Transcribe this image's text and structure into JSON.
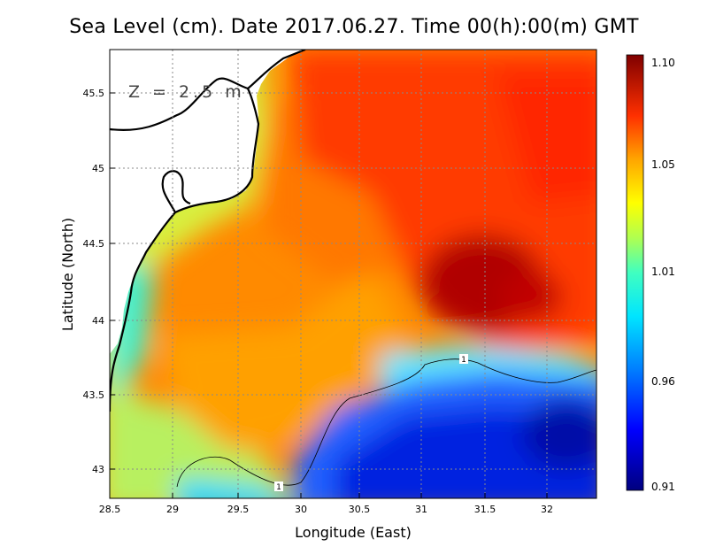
{
  "title": "Sea Level (cm). Date 2017.06.27. Time 00(h):00(m) GMT",
  "depth_label": "Z = 2.5 m",
  "chart_data": {
    "type": "heatmap",
    "title": "Sea Level (cm). Date 2017.06.27. Time 00(h):00(m) GMT",
    "xlabel": "Longitude (East)",
    "ylabel": "Latitude (North)",
    "xlim": [
      28.5,
      32.4
    ],
    "ylim": [
      42.8,
      45.8
    ],
    "x_ticks": [
      28.5,
      29,
      29.5,
      30,
      30.5,
      31,
      31.5,
      32
    ],
    "x_tick_labels": [
      "28.5",
      "29",
      "29.5",
      "30",
      "30.5",
      "31",
      "31.5",
      "32"
    ],
    "y_ticks": [
      43,
      43.5,
      44,
      44.5,
      45,
      45.5
    ],
    "y_tick_labels": [
      "43",
      "43.5",
      "44",
      "44.5",
      "45",
      "45.5"
    ],
    "grid": true,
    "colorbar": {
      "min": 0.91,
      "max": 1.1,
      "ticks": [
        0.91,
        0.96,
        1.01,
        1.05,
        1.1
      ],
      "tick_labels": [
        "0.91",
        "0.96",
        "1.01",
        "1.05",
        "1.10"
      ],
      "placement": "right"
    },
    "contour_level_label": "1",
    "features": {
      "high_center": {
        "lon": 31.4,
        "lat": 44.3,
        "value": 1.09
      },
      "low_center": {
        "lon": 32.2,
        "lat": 43.25,
        "value": 0.92
      },
      "coastal_band_value": 1.01
    }
  }
}
